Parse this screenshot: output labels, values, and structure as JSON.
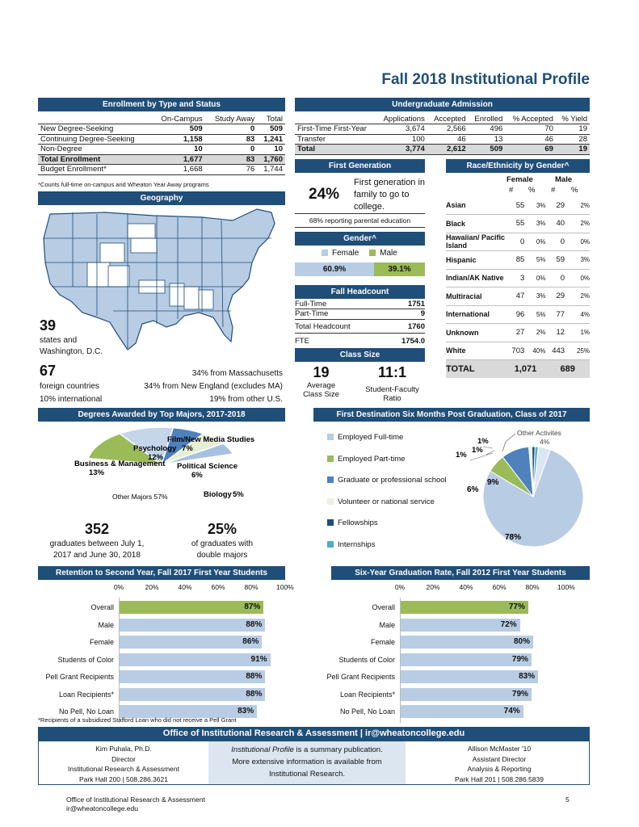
{
  "page_title": "Fall 2018 Institutional Profile",
  "enrollment": {
    "header": "Enrollment by Type and Status",
    "columns": [
      "On-Campus",
      "Study Away",
      "Total"
    ],
    "rows": [
      {
        "label": "New Degree-Seeking",
        "on": "509",
        "away": "0",
        "total": "509"
      },
      {
        "label": "Continuing Degree-Seeking",
        "on": "1,158",
        "away": "83",
        "total": "1,241"
      },
      {
        "label": "Non-Degree",
        "on": "10",
        "away": "0",
        "total": "10"
      },
      {
        "label": "Total Enrollment",
        "on": "1,677",
        "away": "83",
        "total": "1,760"
      },
      {
        "label": "Budget Enrollment*",
        "on": "1,668",
        "away": "76",
        "total": "1,744"
      }
    ],
    "footnote": "*Counts full-time on-campus and Wheaton Year Away programs"
  },
  "admission": {
    "header": "Undergraduate Admission",
    "columns": [
      "Applications",
      "Accepted",
      "Enrolled",
      "% Accepted",
      "% Yield"
    ],
    "rows": [
      {
        "label": "First-Time First-Year",
        "apps": "3,674",
        "acc": "2,566",
        "enr": "496",
        "pacc": "70",
        "yield": "19"
      },
      {
        "label": "Transfer",
        "apps": "100",
        "acc": "46",
        "enr": "13",
        "pacc": "46",
        "yield": "28"
      },
      {
        "label": "Total",
        "apps": "3,774",
        "acc": "2,612",
        "enr": "509",
        "pacc": "69",
        "yield": "19"
      }
    ]
  },
  "geography": {
    "header": "Geography",
    "states_num": "39",
    "states_text": "states and",
    "states_text2": "Washington, D.C.",
    "foreign_num": "67",
    "foreign_text": "foreign countries",
    "intl_text": "10% international",
    "ma_text": "34% from Massachusetts",
    "ne_text": "34% from New England (excludes MA)",
    "other_text": "19% from other U.S."
  },
  "first_gen": {
    "header": "First Generation",
    "pct": "24%",
    "text1": "First generation in",
    "text2": "family to go to",
    "text3": "college.",
    "note": "68% reporting parental education"
  },
  "gender": {
    "header": "Gender^",
    "female_label": "Female",
    "male_label": "Male",
    "female_pct": "60.9%",
    "male_pct": "39.1%",
    "female_value": 60.9
  },
  "headcount": {
    "header": "Fall Headcount",
    "rows": [
      {
        "label": "Full-Time",
        "value": "1751"
      },
      {
        "label": "Part-Time",
        "value": "9"
      },
      {
        "label": "Total Headcount",
        "value": "1760"
      },
      {
        "label": "FTE",
        "value": "1754.0"
      }
    ]
  },
  "class_size": {
    "header": "Class Size",
    "avg_num": "19",
    "avg_text1": "Average",
    "avg_text2": "Class Size",
    "ratio_num": "11:1",
    "ratio_text1": "Student-Faculty",
    "ratio_text2": "Ratio"
  },
  "race": {
    "header": "Race/Ethnicity by Gender^",
    "female": "Female",
    "male": "Male",
    "hash": "#",
    "pct": "%",
    "rows": [
      {
        "label": "Asian",
        "f": "55",
        "fp": "3%",
        "m": "29",
        "mp": "2%"
      },
      {
        "label": "Black",
        "f": "55",
        "fp": "3%",
        "m": "40",
        "mp": "2%"
      },
      {
        "label": "Hawaiian/ Pacific Island",
        "f": "0",
        "fp": "0%",
        "m": "0",
        "mp": "0%"
      },
      {
        "label": "Hispanic",
        "f": "85",
        "fp": "5%",
        "m": "59",
        "mp": "3%"
      },
      {
        "label": "Indian/AK Native",
        "f": "3",
        "fp": "0%",
        "m": "0",
        "mp": "0%"
      },
      {
        "label": "Multiracial",
        "f": "47",
        "fp": "3%",
        "m": "29",
        "mp": "2%"
      },
      {
        "label": "International",
        "f": "96",
        "fp": "5%",
        "m": "77",
        "mp": "4%"
      },
      {
        "label": "Unknown",
        "f": "27",
        "fp": "2%",
        "m": "12",
        "mp": "1%"
      },
      {
        "label": "White",
        "f": "703",
        "fp": "40%",
        "m": "443",
        "mp": "25%"
      }
    ],
    "total_label": "TOTAL",
    "total_f": "1,071",
    "total_m": "689"
  },
  "degrees": {
    "header": "Degrees Awarded by Top Majors, 2017-2018",
    "grads_num": "352",
    "grads_text1": "graduates between July 1,",
    "grads_text2": "2017 and June 30, 2018",
    "double_num": "25%",
    "double_text1": "of graduates with",
    "double_text2": "double majors"
  },
  "first_dest": {
    "header": "First Destination Six Months Post Graduation, Class of 2017"
  },
  "retention": {
    "header": "Retention to Second Year, Fall 2017 First Year Students"
  },
  "graduation": {
    "header": "Six-Year Graduation Rate, Fall 2012 First Year Students"
  },
  "chart_data": [
    {
      "type": "pie",
      "title": "Degrees Awarded by Top Majors, 2017-2018",
      "categories": [
        "Business & Management",
        "Psychology",
        "Film/New Media Studies",
        "Political Science",
        "Biology",
        "Other Majors"
      ],
      "values": [
        13,
        12,
        7,
        6,
        5,
        57
      ],
      "labels": [
        "13%",
        "12%",
        "7%",
        "6%",
        "5%",
        "57%"
      ],
      "colors": [
        "#9bbb59",
        "#c5d5ea",
        "#4f81bd",
        "#e6efd5",
        "#a7c0e0",
        "#ffffff"
      ]
    },
    {
      "type": "pie",
      "title": "First Destination Six Months Post Graduation, Class of 2017",
      "categories": [
        "Employed Full-time",
        "Employed Part-time",
        "Graduate or professional school",
        "Volunteer or national service",
        "Fellowships",
        "Internships",
        "Other Activites"
      ],
      "values": [
        78,
        6,
        9,
        1,
        1,
        1,
        4
      ],
      "labels": [
        "78%",
        "6%",
        "9%",
        "1%",
        "1%",
        "1%",
        "4%"
      ],
      "colors": [
        "#b8cce4",
        "#9bbb59",
        "#4f81bd",
        "#ebf1de",
        "#1f4e79",
        "#4bacc6",
        "#dce6f1"
      ]
    },
    {
      "type": "bar",
      "orientation": "horizontal",
      "title": "Retention to Second Year, Fall 2017 First Year Students",
      "categories": [
        "Overall",
        "Male",
        "Female",
        "Students of Color",
        "Pell Grant Recipients",
        "Loan Recipients*",
        "No Pell, No Loan"
      ],
      "values": [
        87,
        88,
        86,
        91,
        88,
        88,
        83
      ],
      "value_labels": [
        "87%",
        "88%",
        "86%",
        "91%",
        "88%",
        "88%",
        "83%"
      ],
      "ticks": [
        "0%",
        "20%",
        "40%",
        "60%",
        "80%",
        "100%"
      ],
      "xlim": [
        0,
        100
      ],
      "highlight_color": "#9bbb59",
      "bar_color": "#b8cce4",
      "footnote": "*Recipients of a subsidized Stafford Loan who did not receive a Pell Grant"
    },
    {
      "type": "bar",
      "orientation": "horizontal",
      "title": "Six-Year Graduation Rate, Fall 2012 First Year Students",
      "categories": [
        "Overall",
        "Male",
        "Female",
        "Students of Color",
        "Pell Grant Recipients",
        "Loan Recipients*",
        "No Pell, No Loan"
      ],
      "values": [
        77,
        72,
        80,
        79,
        83,
        79,
        74
      ],
      "value_labels": [
        "77%",
        "72%",
        "80%",
        "79%",
        "83%",
        "79%",
        "74%"
      ],
      "ticks": [
        "0%",
        "20%",
        "40%",
        "60%",
        "80%",
        "100%"
      ],
      "xlim": [
        0,
        100
      ],
      "highlight_color": "#9bbb59",
      "bar_color": "#b8cce4"
    }
  ],
  "office": {
    "header": "Office of Institutional Research & Assessment | ir@wheatoncollege.edu",
    "left": [
      "Kim Puhala, Ph.D.",
      "Director",
      "Institutional Research & Assessment",
      "Park Hall 200 | 508.286.3621"
    ],
    "mid1_italic": "Institutional Profile",
    "mid1_rest": " is a summary publication.",
    "mid2": "More extensive information is available from",
    "mid3": "Institutional Research.",
    "right": [
      "Allison McMaster '10",
      "Assistant Director",
      "Analysis & Reporting",
      "Park Hall 201 | 508.286.5839"
    ]
  },
  "page_footer": {
    "line1": "Office of Institutional Research & Assessment",
    "line2": "ir@wheatoncollege.edu",
    "page_num": "5"
  },
  "colors": {
    "header_blue": "#1f4e79",
    "green": "#9bbb59",
    "light_blue": "#b8cce4"
  }
}
